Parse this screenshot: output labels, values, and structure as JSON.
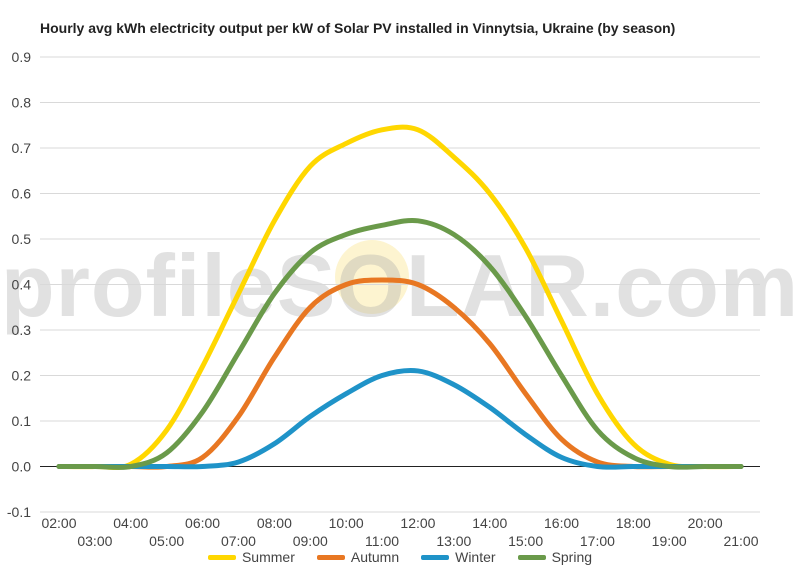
{
  "chart_data": {
    "type": "line",
    "title": "Hourly avg kWh electricity output per kW of Solar PV installed in Vinnytsia, Ukraine (by season)",
    "xlabel": "",
    "ylabel": "",
    "ylim": [
      -0.1,
      0.9
    ],
    "yticks": [
      "0.9",
      "0.8",
      "0.7",
      "0.6",
      "0.5",
      "0.4",
      "0.3",
      "0.2",
      "0.1",
      "0.0",
      "-0.1"
    ],
    "x": [
      "02:00",
      "03:00",
      "04:00",
      "05:00",
      "06:00",
      "07:00",
      "08:00",
      "09:00",
      "10:00",
      "11:00",
      "12:00",
      "13:00",
      "14:00",
      "15:00",
      "16:00",
      "17:00",
      "18:00",
      "19:00",
      "20:00",
      "21:00"
    ],
    "grid": true,
    "legend_position": "bottom",
    "series": [
      {
        "name": "Summer",
        "color": "#FFD700",
        "values": [
          0.0,
          0.0,
          0.005,
          0.08,
          0.22,
          0.38,
          0.54,
          0.66,
          0.71,
          0.74,
          0.74,
          0.68,
          0.6,
          0.48,
          0.32,
          0.16,
          0.05,
          0.005,
          0.0,
          0.0
        ]
      },
      {
        "name": "Autumn",
        "color": "#E87722",
        "values": [
          0.0,
          0.0,
          0.0,
          0.0,
          0.02,
          0.11,
          0.24,
          0.35,
          0.4,
          0.41,
          0.4,
          0.35,
          0.27,
          0.16,
          0.06,
          0.01,
          0.0,
          0.0,
          0.0,
          0.0
        ]
      },
      {
        "name": "Winter",
        "color": "#1F93C8",
        "values": [
          0.0,
          0.0,
          0.0,
          0.0,
          0.0,
          0.01,
          0.05,
          0.11,
          0.16,
          0.2,
          0.21,
          0.18,
          0.13,
          0.07,
          0.02,
          0.0,
          0.0,
          0.0,
          0.0,
          0.0
        ]
      },
      {
        "name": "Spring",
        "color": "#6A9A4A",
        "values": [
          0.0,
          0.0,
          0.0,
          0.03,
          0.12,
          0.25,
          0.38,
          0.47,
          0.51,
          0.53,
          0.54,
          0.51,
          0.44,
          0.33,
          0.2,
          0.08,
          0.02,
          0.0,
          0.0,
          0.0
        ]
      }
    ]
  },
  "watermark": "profileSOLAR.com"
}
